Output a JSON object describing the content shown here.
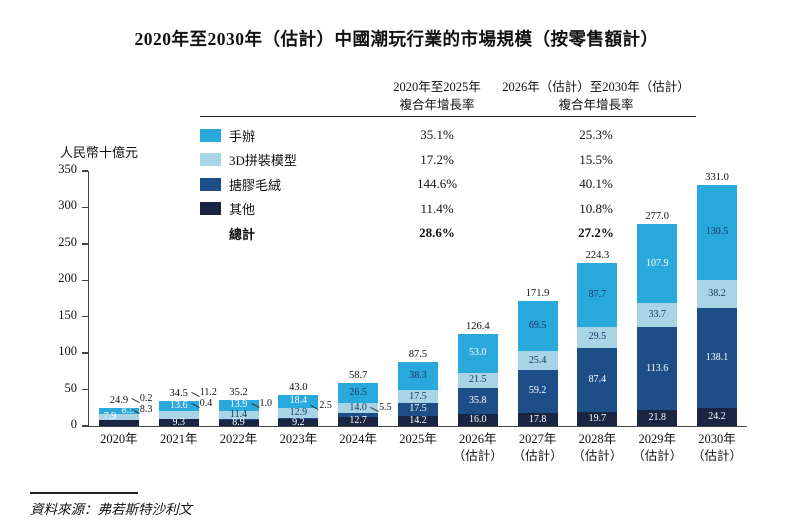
{
  "title": "2020年至2030年（估計）中國潮玩行業的市場規模（按零售額計）",
  "y_axis_label": "人民幣十億元",
  "source": "資料來源：弗若斯特沙利文",
  "cagr_table": {
    "col1_header": "2020年至2025年\n複合年增長率",
    "col2_header": "2026年（估計）至2030年（估計）\n複合年增長率",
    "rows": [
      {
        "label": "手辦",
        "swatch": "#29a8dc",
        "col1": "35.1%",
        "col2": "25.3%",
        "bold": false
      },
      {
        "label": "3D拼裝模型",
        "swatch": "#a9d4e6",
        "col1": "17.2%",
        "col2": "15.5%",
        "bold": false
      },
      {
        "label": "搪膠毛絨",
        "swatch": "#1d4e87",
        "col1": "144.6%",
        "col2": "40.1%",
        "bold": false
      },
      {
        "label": "其他",
        "swatch": "#1a2544",
        "col1": "11.4%",
        "col2": "10.8%",
        "bold": false
      },
      {
        "label": "總計",
        "swatch": null,
        "col1": "28.6%",
        "col2": "27.2%",
        "bold": true
      }
    ]
  },
  "chart_data": {
    "type": "bar",
    "stacked": true,
    "title": "2020年至2030年（估計）中國潮玩行業的市場規模（按零售額計）",
    "xlabel": "",
    "ylabel": "人民幣十億元",
    "ylim": [
      0,
      350
    ],
    "yticks": [
      0,
      50,
      100,
      150,
      200,
      250,
      300,
      350
    ],
    "grid": false,
    "legend_position": "top-left-of-table",
    "categories": [
      "2020年",
      "2021年",
      "2022年",
      "2023年",
      "2024年",
      "2025年",
      "2026年\n（估計）",
      "2027年\n（估計）",
      "2028年\n（估計）",
      "2029年\n（估計）",
      "2030年\n（估計）"
    ],
    "totals": [
      24.9,
      34.5,
      35.2,
      43.0,
      58.7,
      87.5,
      126.4,
      171.9,
      224.3,
      277.0,
      331.0
    ],
    "series": [
      {
        "name": "手辦",
        "color": "#29a8dc",
        "values": [
          8.5,
          13.6,
          13.9,
          18.4,
          26.5,
          38.3,
          53.0,
          69.5,
          87.7,
          107.9,
          130.5
        ]
      },
      {
        "name": "3D拼裝模型",
        "color": "#a9d4e6",
        "values": [
          7.9,
          11.2,
          11.4,
          12.9,
          14.0,
          17.5,
          21.5,
          25.4,
          29.5,
          33.7,
          38.2
        ]
      },
      {
        "name": "搪膠毛絨",
        "color": "#1d4e87",
        "values": [
          0.2,
          0.4,
          1.0,
          2.5,
          5.5,
          17.5,
          35.8,
          59.2,
          87.4,
          113.6,
          138.1
        ]
      },
      {
        "name": "其他",
        "color": "#1a2544",
        "values": [
          8.3,
          9.3,
          8.9,
          9.2,
          12.7,
          14.2,
          16.0,
          17.8,
          19.7,
          21.8,
          24.2
        ]
      }
    ],
    "label_mode": [
      [
        "w",
        "w",
        "w",
        "w",
        "d",
        "d",
        "w",
        "d",
        "d",
        "w",
        "d"
      ],
      [
        "w",
        "c",
        "d",
        "d",
        "d",
        "d",
        "d",
        "d",
        "d",
        "d",
        "d"
      ],
      [
        "c",
        "c",
        "c",
        "c",
        "c",
        "w",
        "w",
        "w",
        "w",
        "w",
        "w"
      ],
      [
        "c",
        "w",
        "w",
        "w",
        "w",
        "w",
        "w",
        "w",
        "w",
        "w",
        "w"
      ]
    ],
    "label_align": {
      "0": {
        "0": "right",
        "1": "left"
      }
    },
    "callouts": [
      [
        {
          "s": 2,
          "b": 22
        },
        {
          "s": 3,
          "b": 11
        }
      ],
      [
        {
          "s": 1,
          "b": 28
        },
        {
          "s": 2,
          "b": 17
        }
      ],
      [
        {
          "s": 2,
          "b": 17
        }
      ],
      [
        {
          "s": 2,
          "b": 15
        }
      ],
      [
        {
          "s": 2,
          "b": 13
        }
      ],
      [],
      [],
      [],
      [],
      [],
      []
    ]
  }
}
